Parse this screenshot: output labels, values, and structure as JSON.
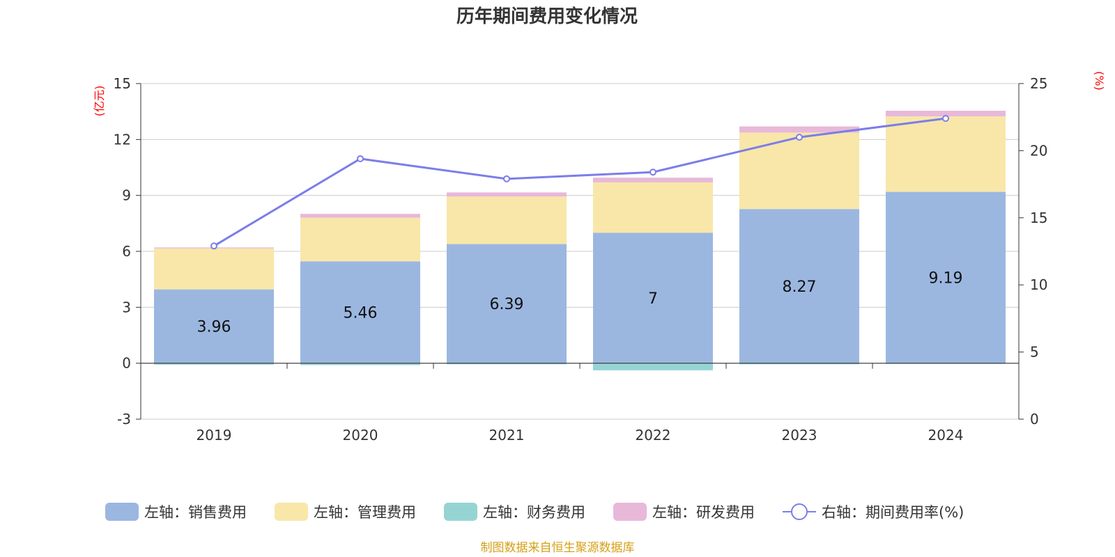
{
  "chart_data": {
    "type": "bar",
    "stacked": true,
    "title": "历年期间费用变化情况",
    "categories": [
      "2019",
      "2020",
      "2021",
      "2022",
      "2023",
      "2024"
    ],
    "left_axis": {
      "unit": "(亿元)",
      "ylim": [
        -3,
        15
      ],
      "ticks": [
        -3,
        0,
        3,
        6,
        9,
        12,
        15
      ]
    },
    "right_axis": {
      "unit": "(%)",
      "ylim": [
        0,
        25
      ],
      "ticks": [
        0,
        5,
        10,
        15,
        20,
        25
      ]
    },
    "series": [
      {
        "name": "左轴：销售费用",
        "axis": "left",
        "type": "bar",
        "color": "#9bb7e0",
        "values": [
          3.96,
          5.46,
          6.39,
          7,
          8.27,
          9.19
        ],
        "labels": [
          "3.96",
          "5.46",
          "6.39",
          "7",
          "8.27",
          "9.19"
        ]
      },
      {
        "name": "左轴：管理费用",
        "axis": "left",
        "type": "bar",
        "color": "#f8e7a9",
        "values": [
          2.2,
          2.35,
          2.55,
          2.7,
          4.1,
          4.05
        ]
      },
      {
        "name": "左轴：财务费用",
        "axis": "left",
        "type": "bar",
        "color": "#96d4d4",
        "values": [
          -0.08,
          -0.1,
          -0.06,
          -0.38,
          -0.06,
          -0.03
        ]
      },
      {
        "name": "左轴：研发费用",
        "axis": "left",
        "type": "bar",
        "color": "#e8b8d9",
        "values": [
          0.05,
          0.2,
          0.22,
          0.25,
          0.33,
          0.3
        ]
      },
      {
        "name": "右轴：期间费用率(%)",
        "axis": "right",
        "type": "line",
        "color": "#7b7ee8",
        "values": [
          12.9,
          19.4,
          17.9,
          18.4,
          21.0,
          22.4
        ]
      }
    ],
    "legend_position": "bottom",
    "grid": true
  },
  "footer": "制图数据来自恒生聚源数据库",
  "colors": {
    "unit_label": "#ff0000",
    "footer": "#d4a017",
    "grid": "#cccccc",
    "axis": "#333333"
  }
}
